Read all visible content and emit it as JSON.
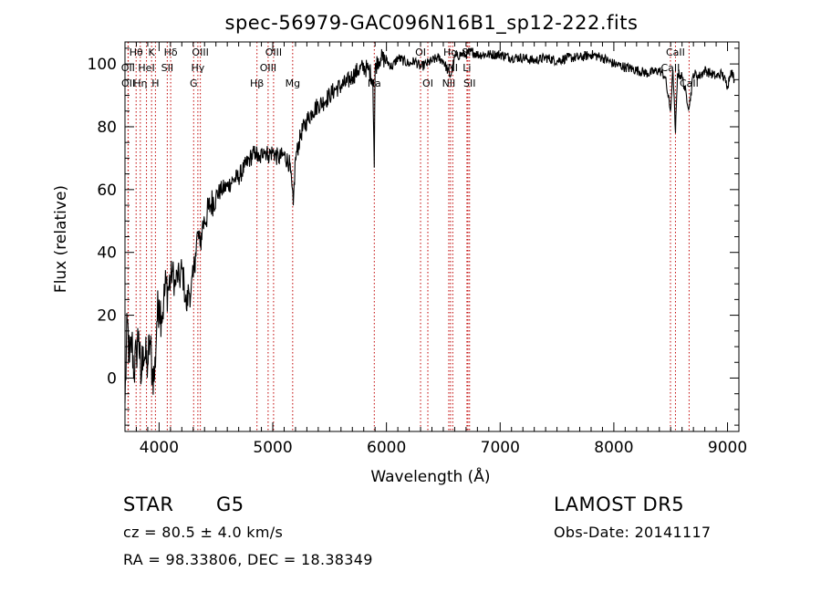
{
  "chart_data": {
    "type": "line",
    "title": "spec-56979-GAC096N16B1_sp12-222.fits",
    "xlabel": "Wavelength (Å)",
    "ylabel": "Flux (relative)",
    "xlim": [
      3700,
      9100
    ],
    "ylim": [
      -17,
      107
    ],
    "x_ticks": [
      4000,
      5000,
      6000,
      7000,
      8000,
      9000
    ],
    "y_ticks": [
      0,
      20,
      40,
      60,
      80,
      100
    ],
    "grid": false,
    "series": [
      {
        "x": [
          3700,
          3720,
          3740,
          3760,
          3780,
          3800,
          3820,
          3840,
          3860,
          3880,
          3900,
          3920,
          3940,
          3960,
          3980,
          4000,
          4020,
          4040,
          4060,
          4080,
          4100,
          4120,
          4140,
          4160,
          4180,
          4200,
          4220,
          4240,
          4260,
          4280,
          4300,
          4320,
          4340,
          4360,
          4380,
          4400,
          4450,
          4500,
          4550,
          4600,
          4650,
          4700,
          4750,
          4800,
          4850,
          4880,
          4920,
          4960,
          5000,
          5050,
          5100,
          5150,
          5180,
          5200,
          5250,
          5300,
          5350,
          5400,
          5450,
          5500,
          5550,
          5600,
          5650,
          5700,
          5750,
          5800,
          5850,
          5880,
          5893,
          5900,
          5920,
          5950,
          6000,
          6050,
          6100,
          6150,
          6200,
          6250,
          6300,
          6350,
          6400,
          6450,
          6500,
          6563,
          6600,
          6650,
          6700,
          6750,
          6800,
          6900,
          7000,
          7100,
          7200,
          7300,
          7400,
          7500,
          7600,
          7700,
          7800,
          7900,
          8000,
          8100,
          8200,
          8300,
          8400,
          8450,
          8498,
          8520,
          8542,
          8560,
          8600,
          8662,
          8700,
          8750,
          8800,
          8850,
          8900,
          8950,
          9000,
          9030,
          9060
        ],
        "y": [
          -8,
          18,
          5,
          12,
          2,
          8,
          15,
          -2,
          10,
          6,
          4,
          12,
          2,
          0,
          18,
          25,
          20,
          24,
          30,
          28,
          32,
          34,
          29,
          33,
          31,
          35,
          30,
          22,
          28,
          27,
          32,
          40,
          46,
          42,
          48,
          50,
          55,
          58,
          60,
          61,
          63,
          64,
          67,
          70,
          72,
          69,
          73,
          71,
          72,
          70,
          71,
          68,
          55,
          70,
          78,
          82,
          85,
          87,
          88,
          90,
          92,
          93,
          94,
          96,
          98,
          99,
          98,
          95,
          67,
          98,
          101,
          102,
          101,
          99,
          102,
          101,
          100,
          101,
          99,
          100,
          101,
          102,
          101,
          96,
          102,
          103,
          103,
          104,
          103,
          103,
          103,
          102,
          102,
          101,
          102,
          101,
          102,
          102,
          103,
          102,
          100,
          99,
          98,
          97,
          98,
          96,
          85,
          98,
          78,
          97,
          96,
          86,
          97,
          96,
          98,
          97,
          96,
          97,
          93,
          98,
          95
        ]
      }
    ],
    "lines": {
      "row1": [
        {
          "name": "Hθ",
          "x": 3798
        },
        {
          "name": "K",
          "x": 3934
        },
        {
          "name": "Hδ",
          "x": 4102
        },
        {
          "name": "OIII",
          "x": 4363
        },
        {
          "name": "OIII",
          "x": 5007
        },
        {
          "name": "OI",
          "x": 6300
        },
        {
          "name": "Hα",
          "x": 6563
        },
        {
          "name": "SII",
          "x": 6717
        },
        {
          "name": "CaII",
          "x": 8542
        }
      ],
      "row2": [
        {
          "name": "OII",
          "x": 3727
        },
        {
          "name": "HeI",
          "x": 3889
        },
        {
          "name": "SII",
          "x": 4072
        },
        {
          "name": "Hγ",
          "x": 4341
        },
        {
          "name": "OIII",
          "x": 4959
        },
        {
          "name": "NI",
          "x": 6583
        },
        {
          "name": "Li",
          "x": 6708
        },
        {
          "name": "CaII",
          "x": 8498
        }
      ],
      "row3": [
        {
          "name": "OII",
          "x": 3729
        },
        {
          "name": "Hη",
          "x": 3835
        },
        {
          "name": "H",
          "x": 3968
        },
        {
          "name": "G",
          "x": 4304
        },
        {
          "name": "Hβ",
          "x": 4861
        },
        {
          "name": "Mg",
          "x": 5175
        },
        {
          "name": "Na",
          "x": 5893
        },
        {
          "name": "OI",
          "x": 6364
        },
        {
          "name": "NII",
          "x": 6548
        },
        {
          "name": "SII",
          "x": 6731
        },
        {
          "name": "CaII",
          "x": 8662
        }
      ]
    },
    "line_color": "#000000",
    "marker_color": "#c00000"
  },
  "info": {
    "object_class": "STAR",
    "subclass": "G5",
    "survey": "LAMOST  DR5",
    "velocity": "cz = 80.5 ± 4.0 km/s",
    "obs_date": "Obs-Date: 20141117",
    "coords": "RA =  98.33806, DEC =  18.38349"
  }
}
